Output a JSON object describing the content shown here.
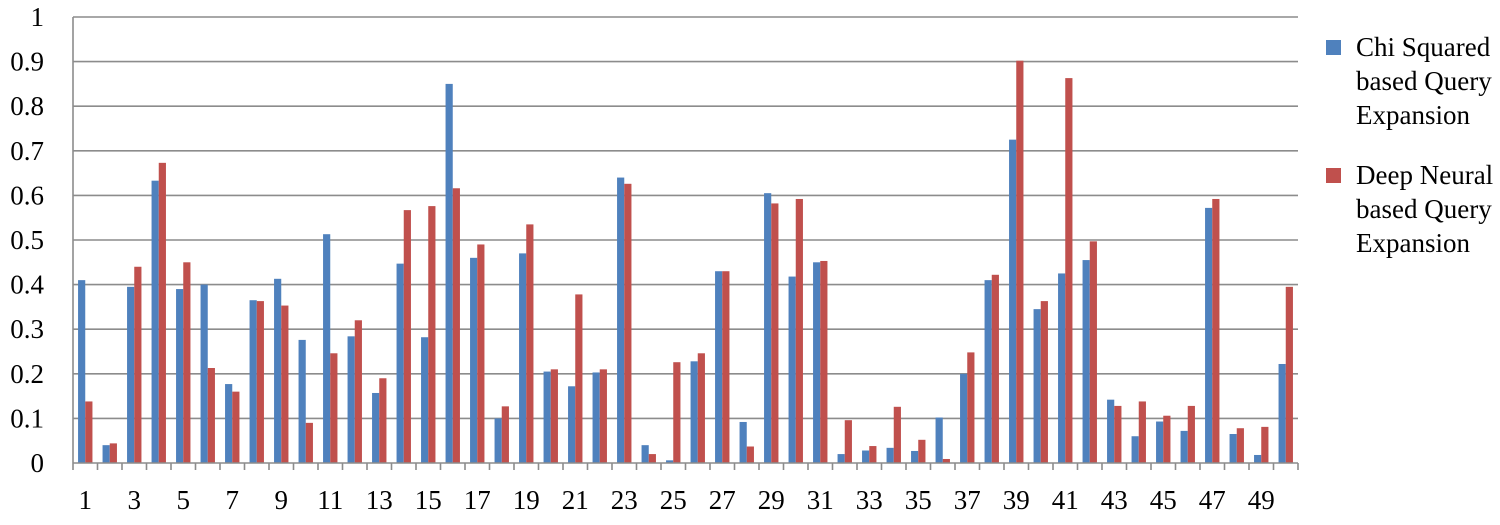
{
  "chart_data": {
    "type": "bar",
    "categories": [
      "1",
      "2",
      "3",
      "4",
      "5",
      "6",
      "7",
      "8",
      "9",
      "10",
      "11",
      "12",
      "13",
      "14",
      "15",
      "16",
      "17",
      "18",
      "19",
      "20",
      "21",
      "22",
      "23",
      "24",
      "25",
      "26",
      "27",
      "28",
      "29",
      "30",
      "31",
      "32",
      "33",
      "34",
      "35",
      "36",
      "37",
      "38",
      "39",
      "40",
      "41",
      "42",
      "43",
      "44",
      "45",
      "46",
      "47",
      "48",
      "49",
      "50"
    ],
    "x_tick_labels": [
      "1",
      "3",
      "5",
      "7",
      "9",
      "11",
      "13",
      "15",
      "17",
      "19",
      "21",
      "23",
      "25",
      "27",
      "29",
      "31",
      "33",
      "35",
      "37",
      "39",
      "41",
      "43",
      "45",
      "47",
      "49"
    ],
    "y_tick_labels": [
      "0",
      "0.1",
      "0.2",
      "0.3",
      "0.4",
      "0.5",
      "0.6",
      "0.7",
      "0.8",
      "0.9",
      "1"
    ],
    "ylim": [
      0,
      1
    ],
    "grid": true,
    "legend_position": "right",
    "series": [
      {
        "name": "Chi Squared based Query Expansion",
        "color": "#4F81BD",
        "values": [
          0.41,
          0.04,
          0.395,
          0.633,
          0.39,
          0.4,
          0.177,
          0.365,
          0.413,
          0.276,
          0.513,
          0.284,
          0.157,
          0.447,
          0.282,
          0.85,
          0.46,
          0.1,
          0.47,
          0.205,
          0.172,
          0.203,
          0.64,
          0.04,
          0.006,
          0.228,
          0.43,
          0.092,
          0.605,
          0.418,
          0.45,
          0.02,
          0.028,
          0.034,
          0.027,
          0.102,
          0.2,
          0.41,
          0.725,
          0.345,
          0.425,
          0.455,
          0.142,
          0.06,
          0.093,
          0.072,
          0.572,
          0.065,
          0.018,
          0.222
        ]
      },
      {
        "name": "Deep Neural based Query Expansion",
        "color": "#C0504D",
        "values": [
          0.138,
          0.044,
          0.44,
          0.673,
          0.45,
          0.213,
          0.16,
          0.363,
          0.353,
          0.09,
          0.246,
          0.32,
          0.19,
          0.567,
          0.576,
          0.616,
          0.49,
          0.127,
          0.535,
          0.21,
          0.378,
          0.21,
          0.626,
          0.02,
          0.226,
          0.246,
          0.43,
          0.037,
          0.582,
          0.592,
          0.453,
          0.096,
          0.038,
          0.126,
          0.052,
          0.009,
          0.248,
          0.422,
          0.902,
          0.363,
          0.863,
          0.497,
          0.128,
          0.138,
          0.106,
          0.128,
          0.592,
          0.078,
          0.081,
          0.395
        ]
      }
    ]
  },
  "legend": {
    "item1": {
      "label": "Chi Squared based Query Expansion"
    },
    "item2": {
      "label": "Deep Neural based Query Expansion"
    }
  }
}
